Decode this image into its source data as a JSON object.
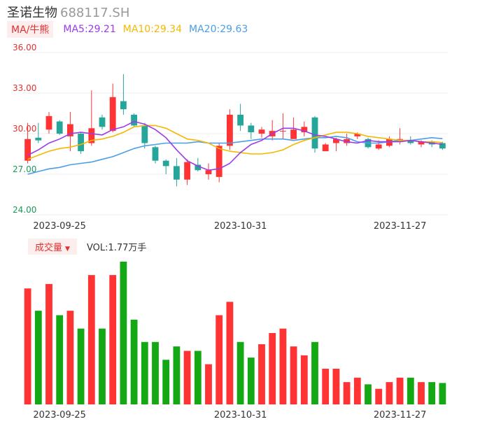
{
  "header": {
    "name": "圣诺生物",
    "code": "688117.SH"
  },
  "legend": {
    "ma_button": "MA/牛熊",
    "ma5": "MA5:29.21",
    "ma10": "MA10:29.34",
    "ma20": "MA20:29.63"
  },
  "volume_legend": {
    "button": "成交量",
    "value": "VOL:1.77万手"
  },
  "colors": {
    "up": "#ff3333",
    "down": "#26a69a",
    "vol_down": "#14a814",
    "ma5": "#9b3be8",
    "ma10": "#f5b800",
    "ma20": "#4a9ee8"
  },
  "chart_data": [
    {
      "type": "candlestick",
      "x_labels": [
        "2023-09-25",
        "2023-10-31",
        "2023-11-27"
      ],
      "y_ticks": [
        "36.00",
        "33.00",
        "30.00",
        "27.00",
        "24.00"
      ],
      "ylim": [
        24,
        36
      ],
      "candles": [
        {
          "o": 28.0,
          "c": 29.6,
          "h": 30.8,
          "l": 27.8
        },
        {
          "o": 29.7,
          "c": 29.5,
          "h": 30.8,
          "l": 29.3
        },
        {
          "o": 30.3,
          "c": 31.3,
          "h": 31.6,
          "l": 30.0
        },
        {
          "o": 30.9,
          "c": 30.0,
          "h": 31.0,
          "l": 29.9
        },
        {
          "o": 29.8,
          "c": 30.7,
          "h": 31.6,
          "l": 28.7
        },
        {
          "o": 30.0,
          "c": 28.7,
          "h": 30.1,
          "l": 28.5
        },
        {
          "o": 29.3,
          "c": 30.4,
          "h": 33.2,
          "l": 29.1
        },
        {
          "o": 31.2,
          "c": 30.5,
          "h": 31.4,
          "l": 30.3
        },
        {
          "o": 30.2,
          "c": 32.7,
          "h": 33.7,
          "l": 30.1
        },
        {
          "o": 32.4,
          "c": 31.8,
          "h": 34.4,
          "l": 31.4
        },
        {
          "o": 31.4,
          "c": 30.6,
          "h": 31.5,
          "l": 30.5
        },
        {
          "o": 30.6,
          "c": 29.3,
          "h": 30.8,
          "l": 28.9
        },
        {
          "o": 29.0,
          "c": 28.0,
          "h": 29.1,
          "l": 27.8
        },
        {
          "o": 28.0,
          "c": 27.6,
          "h": 28.1,
          "l": 27.0
        },
        {
          "o": 27.6,
          "c": 26.6,
          "h": 28.2,
          "l": 26.1
        },
        {
          "o": 26.6,
          "c": 27.9,
          "h": 28.1,
          "l": 26.2
        },
        {
          "o": 27.7,
          "c": 27.3,
          "h": 28.2,
          "l": 27.2
        },
        {
          "o": 27.0,
          "c": 27.3,
          "h": 27.8,
          "l": 26.6
        },
        {
          "o": 26.8,
          "c": 29.1,
          "h": 29.3,
          "l": 26.4
        },
        {
          "o": 29.1,
          "c": 31.4,
          "h": 31.8,
          "l": 28.8
        },
        {
          "o": 31.4,
          "c": 30.6,
          "h": 32.2,
          "l": 30.2
        },
        {
          "o": 30.6,
          "c": 30.1,
          "h": 30.8,
          "l": 29.6
        },
        {
          "o": 30.0,
          "c": 30.3,
          "h": 30.5,
          "l": 29.7
        },
        {
          "o": 29.8,
          "c": 30.2,
          "h": 31.0,
          "l": 29.5
        },
        {
          "o": 30.2,
          "c": 30.2,
          "h": 31.5,
          "l": 29.6
        },
        {
          "o": 29.6,
          "c": 30.3,
          "h": 31.2,
          "l": 29.6
        },
        {
          "o": 30.1,
          "c": 30.5,
          "h": 30.9,
          "l": 29.8
        },
        {
          "o": 31.2,
          "c": 28.9,
          "h": 31.3,
          "l": 28.6
        },
        {
          "o": 28.7,
          "c": 29.2,
          "h": 29.3,
          "l": 28.7
        },
        {
          "o": 29.3,
          "c": 29.6,
          "h": 29.7,
          "l": 28.7
        },
        {
          "o": 29.3,
          "c": 29.6,
          "h": 30.0,
          "l": 29.1
        },
        {
          "o": 29.8,
          "c": 30.0,
          "h": 30.1,
          "l": 29.6
        },
        {
          "o": 29.6,
          "c": 29.0,
          "h": 29.7,
          "l": 28.9
        },
        {
          "o": 28.9,
          "c": 29.2,
          "h": 29.5,
          "l": 28.8
        },
        {
          "o": 29.1,
          "c": 29.6,
          "h": 29.8,
          "l": 29.0
        },
        {
          "o": 29.6,
          "c": 29.6,
          "h": 30.4,
          "l": 29.2
        },
        {
          "o": 29.5,
          "c": 29.3,
          "h": 29.8,
          "l": 29.2
        },
        {
          "o": 29.2,
          "c": 29.4,
          "h": 29.5,
          "l": 29.0
        },
        {
          "o": 29.4,
          "c": 29.2,
          "h": 29.5,
          "l": 29.0
        },
        {
          "o": 29.3,
          "c": 28.9,
          "h": 29.4,
          "l": 28.8
        }
      ],
      "ma5": [
        28.4,
        28.8,
        29.3,
        29.6,
        30.0,
        30.1,
        30.0,
        29.9,
        30.3,
        30.5,
        30.9,
        30.7,
        30.3,
        29.7,
        28.8,
        28.0,
        27.6,
        27.3,
        27.4,
        27.8,
        28.6,
        29.2,
        29.5,
        30.0,
        30.4,
        30.4,
        30.2,
        29.9,
        29.8,
        29.6,
        29.4,
        29.3,
        29.5,
        29.4,
        29.4,
        29.4,
        29.5,
        29.4,
        29.3,
        29.21
      ],
      "ma10": [
        28.1,
        28.4,
        28.7,
        28.9,
        29.0,
        29.2,
        29.5,
        29.6,
        29.8,
        30.1,
        30.5,
        30.6,
        30.6,
        30.4,
        30.0,
        29.6,
        29.5,
        29.3,
        28.9,
        28.7,
        28.6,
        28.5,
        28.5,
        28.6,
        28.8,
        29.2,
        29.5,
        29.7,
        29.9,
        30.1,
        30.1,
        30.0,
        29.8,
        29.7,
        29.6,
        29.5,
        29.5,
        29.4,
        29.4,
        29.34
      ],
      "ma20": [
        27.0,
        27.2,
        27.4,
        27.5,
        27.7,
        27.8,
        27.9,
        28.1,
        28.3,
        28.6,
        28.9,
        29.1,
        29.2,
        29.3,
        29.3,
        29.3,
        29.4,
        29.3,
        29.3,
        29.3,
        29.4,
        29.5,
        29.6,
        29.6,
        29.6,
        29.5,
        29.6,
        29.7,
        29.7,
        29.8,
        29.7,
        29.4,
        29.3,
        29.3,
        29.4,
        29.5,
        29.5,
        29.6,
        29.7,
        29.63
      ]
    },
    {
      "type": "bar",
      "title": "成交量",
      "volume_label": "VOL:1.77万手",
      "values": [
        2.6,
        2.1,
        2.7,
        2.0,
        2.1,
        1.7,
        2.9,
        1.7,
        2.9,
        3.2,
        1.9,
        1.4,
        1.4,
        1.0,
        1.3,
        1.2,
        1.2,
        0.9,
        2.0,
        2.3,
        1.4,
        1.05,
        1.35,
        1.6,
        1.7,
        1.3,
        1.1,
        1.4,
        0.8,
        0.8,
        0.5,
        0.6,
        0.45,
        0.35,
        0.5,
        0.6,
        0.6,
        0.5,
        0.5,
        0.48
      ]
    }
  ]
}
